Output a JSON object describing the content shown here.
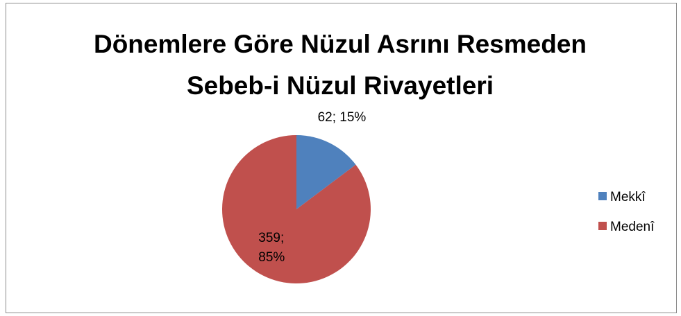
{
  "chart_data": {
    "type": "pie",
    "title": "Dönemlere Göre Nüzul Asrını Resmeden Sebeb-i Nüzul Rivayetleri",
    "categories": [
      "Mekkî",
      "Medenî"
    ],
    "values": [
      62,
      359
    ],
    "value_labels": [
      "62; 15%",
      "359; 85%"
    ],
    "colors": [
      "#4f81bd",
      "#c0504d"
    ],
    "legend": "right"
  }
}
